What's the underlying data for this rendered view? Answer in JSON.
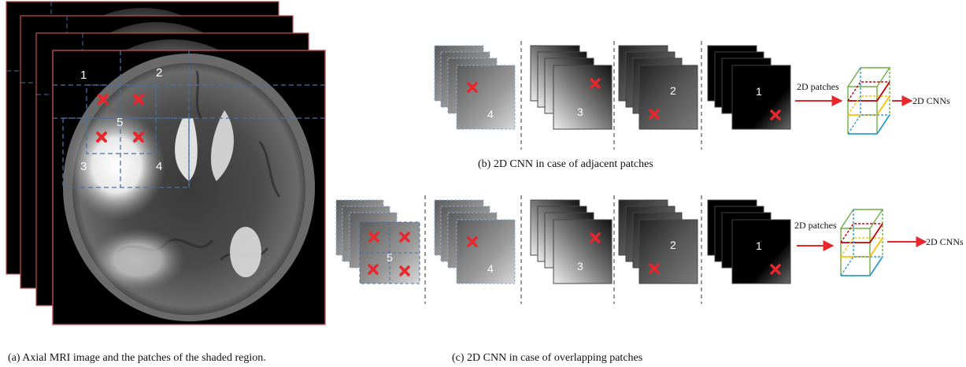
{
  "captions": {
    "a": "(a) Axial MRI image and the patches of the shaded region.",
    "b": "(b) 2D CNN in case of adjacent patches",
    "c": "(c) 2D CNN in case of overlapping patches"
  },
  "mri": {
    "patch_labels": [
      "1",
      "2",
      "3",
      "4",
      "5"
    ]
  },
  "row_b": {
    "stack_labels": [
      "4",
      "3",
      "2",
      "1"
    ],
    "arrow1_label": "2D patches",
    "arrow2_label": "2D CNNs"
  },
  "row_c": {
    "stack_labels": [
      "5",
      "4",
      "3",
      "2",
      "1"
    ],
    "arrow1_label": "2D patches",
    "arrow2_label": "2D CNNs"
  },
  "colors": {
    "marker": "#e8262b",
    "dashed_grid": "#4a6fa5",
    "slice_border": "#c0504d",
    "patch_border": "#8fa8c8",
    "cube_green": "#70ad47",
    "cube_red": "#c00000",
    "cube_yellow": "#ffc000",
    "cube_blue": "#2e9bd6"
  }
}
